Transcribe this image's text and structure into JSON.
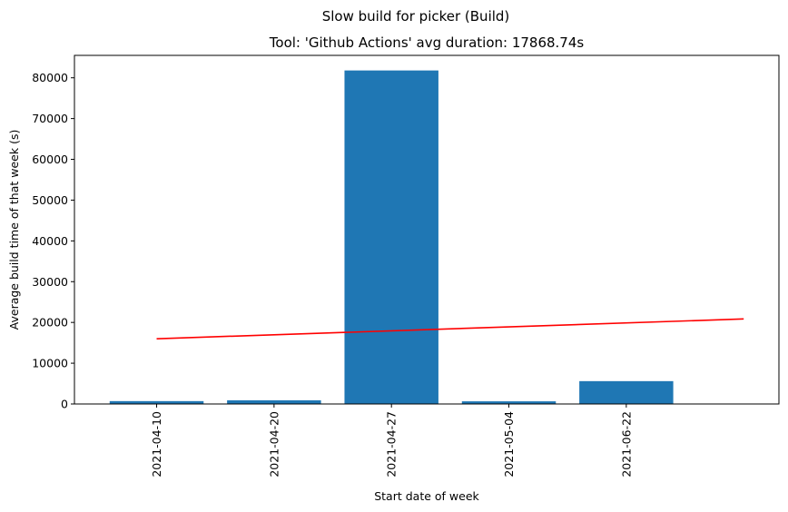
{
  "figure": {
    "suptitle": "Slow build for picker (Build)"
  },
  "chart_data": {
    "type": "bar",
    "title": "Tool: 'Github Actions' avg duration: 17868.74s",
    "xlabel": "Start date of week",
    "ylabel": "Average build time of that week (s)",
    "categories": [
      "2021-04-10",
      "2021-04-20",
      "2021-04-27",
      "2021-05-04",
      "2021-06-22"
    ],
    "values": [
      700,
      900,
      81800,
      650,
      5600
    ],
    "bar_color": "#1f77b4",
    "ylim": [
      0,
      85500
    ],
    "yticks": [
      0,
      10000,
      20000,
      30000,
      40000,
      50000,
      60000,
      70000,
      80000
    ],
    "xlim": [
      -0.7,
      5.3
    ],
    "trend_line": {
      "color": "#ff0000",
      "x": [
        0,
        5
      ],
      "y": [
        16000,
        20850
      ]
    },
    "grid": false,
    "legend": "none"
  }
}
